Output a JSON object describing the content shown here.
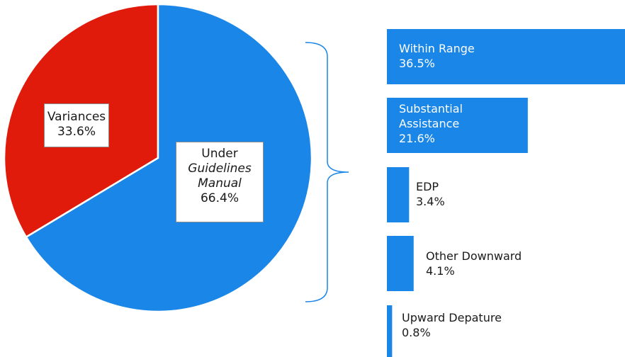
{
  "chart_data": [
    {
      "type": "pie",
      "slices": [
        {
          "label_lines": [
            "Variances"
          ],
          "value": 33.6,
          "value_label": "33.6%",
          "color": "#e01b0c"
        },
        {
          "label_lines": [
            "Under",
            "Guidelines",
            "Manual"
          ],
          "italic_lines": [
            1,
            2
          ],
          "value": 66.4,
          "value_label": "66.4%",
          "color": "#1a86e8"
        }
      ]
    },
    {
      "type": "bar",
      "orientation": "horizontal",
      "color": "#1a86e8",
      "bars": [
        {
          "label_lines": [
            "Within Range"
          ],
          "value": 36.5,
          "value_label": "36.5%"
        },
        {
          "label_lines": [
            "Substantial",
            "Assistance"
          ],
          "value": 21.6,
          "value_label": "21.6%"
        },
        {
          "label_lines": [
            "EDP"
          ],
          "value": 3.4,
          "value_label": "3.4%"
        },
        {
          "label_lines": [
            "Other Downward"
          ],
          "value": 4.1,
          "value_label": "4.1%"
        },
        {
          "label_lines": [
            "Upward Depature"
          ],
          "value": 0.8,
          "value_label": "0.8%"
        }
      ]
    }
  ]
}
